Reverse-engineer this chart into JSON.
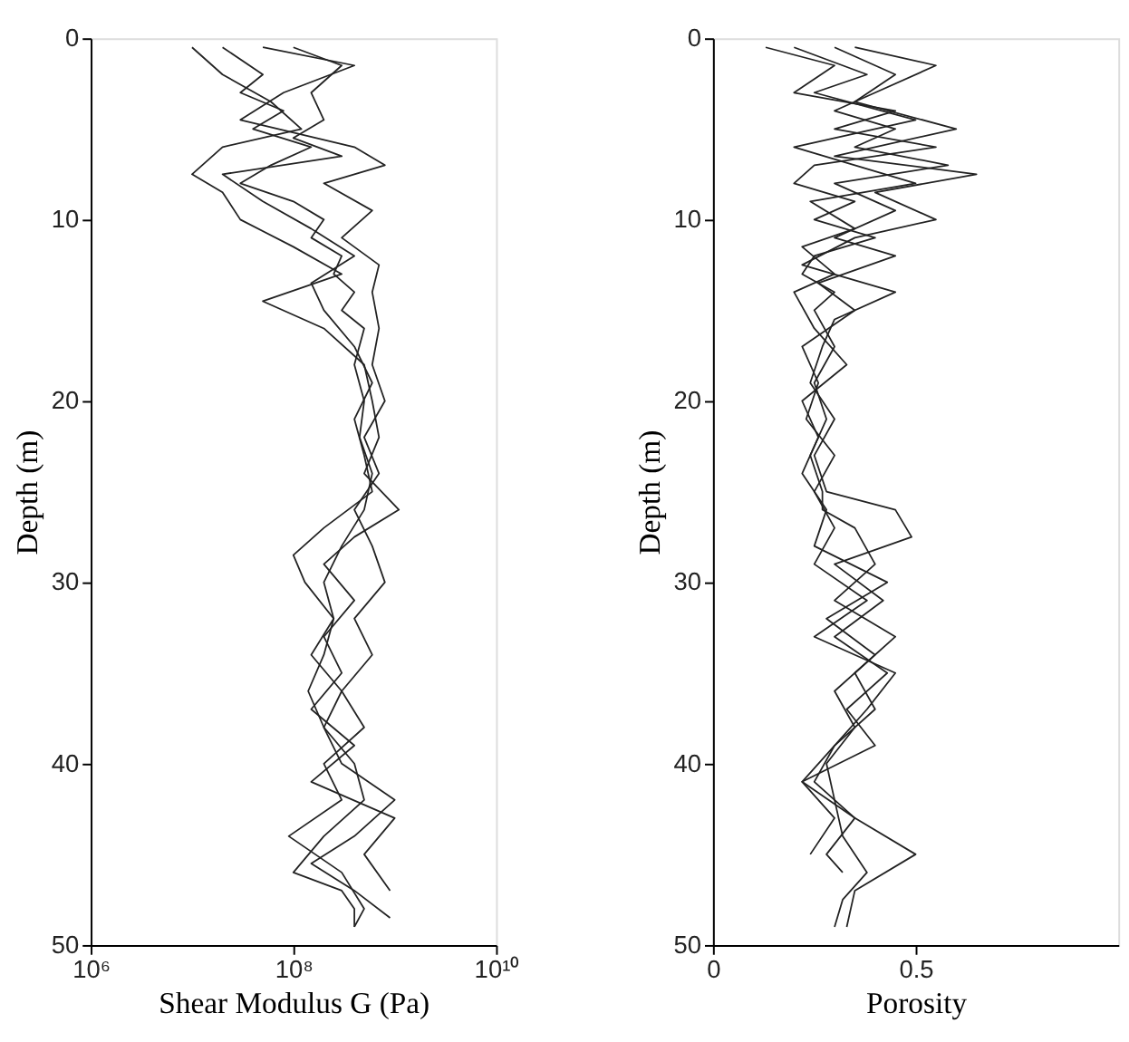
{
  "chart_data": [
    {
      "type": "line",
      "xlabel": "Shear Modulus G (Pa)",
      "ylabel": "Depth (m)",
      "log": "x",
      "grid": false,
      "legend": false,
      "xlim": [
        1000000,
        10000000000
      ],
      "xticks": [
        {
          "value": 1000000,
          "label": "10⁶"
        },
        {
          "value": 100000000,
          "label": "10⁸"
        },
        {
          "value": 10000000000,
          "label": "10¹⁰"
        }
      ],
      "ylim": [
        50,
        0
      ],
      "yticks": [
        0,
        10,
        20,
        30,
        40,
        50
      ],
      "series": [
        {
          "color": "#222222",
          "x": [
            20000000.0,
            50000000.0,
            30000000.0,
            80000000.0,
            40000000.0,
            150000000.0,
            60000000.0,
            30000000.0,
            100000000.0,
            200000000.0,
            150000000.0,
            300000000.0,
            250000000.0,
            400000000.0,
            300000000.0,
            500000000.0,
            400000000.0,
            500000000.0,
            450000000.0,
            600000000.0,
            500000000.0,
            300000000.0,
            200000000.0,
            250000000.0,
            150000000.0,
            300000000.0,
            200000000.0,
            400000000.0,
            500000000.0,
            200000000.0,
            100000000.0,
            300000000.0,
            400000000.0,
            400000000.0
          ],
          "values": [
            0.5,
            2,
            3,
            4,
            5,
            6,
            7,
            8,
            9,
            10,
            11,
            12,
            13,
            14,
            15,
            16,
            18,
            20,
            22,
            24,
            26,
            28,
            30,
            32,
            34,
            36,
            38,
            40,
            42,
            44,
            46,
            47,
            48,
            49
          ]
        },
        {
          "color": "#222222",
          "x": [
            100000000.0,
            300000000.0,
            150000000.0,
            200000000.0,
            100000000.0,
            300000000.0,
            20000000.0,
            50000000.0,
            150000000.0,
            400000000.0,
            150000000.0,
            200000000.0,
            400000000.0,
            600000000.0,
            400000000.0,
            500000000.0,
            600000000.0,
            200000000.0,
            100000000.0,
            130000000.0,
            250000000.0,
            200000000.0,
            140000000.0,
            200000000.0,
            300000000.0,
            1000000000.0,
            400000000.0,
            150000000.0,
            400000000.0,
            900000000.0
          ],
          "values": [
            0.5,
            1.5,
            3,
            4.5,
            5.5,
            6.5,
            7.5,
            9,
            10.5,
            12,
            13.5,
            15,
            17,
            19,
            21,
            23,
            25,
            27,
            28.5,
            30,
            32,
            34,
            36,
            38,
            40,
            42,
            44,
            45.5,
            47,
            48.5
          ]
        },
        {
          "color": "#222222",
          "x": [
            10000000.0,
            20000000.0,
            60000000.0,
            120000000.0,
            20000000.0,
            10000000.0,
            20000000.0,
            30000000.0,
            100000000.0,
            300000000.0,
            50000000.0,
            200000000.0,
            500000000.0,
            600000000.0,
            700000000.0,
            500000000.0,
            1100000000.0,
            400000000.0,
            200000000.0,
            400000000.0,
            200000000.0,
            300000000.0,
            150000000.0,
            400000000.0,
            150000000.0,
            1000000000.0,
            500000000.0,
            900000000.0
          ],
          "values": [
            0.5,
            2,
            3.5,
            5,
            6,
            7.5,
            8.5,
            10,
            11.5,
            13,
            14.5,
            16,
            18,
            20,
            22,
            24,
            26,
            27.5,
            29,
            31,
            33,
            35,
            37,
            39,
            41,
            43,
            45,
            47
          ]
        },
        {
          "color": "#222222",
          "x": [
            50000000.0,
            400000000.0,
            80000000.0,
            30000000.0,
            400000000.0,
            800000000.0,
            200000000.0,
            600000000.0,
            300000000.0,
            700000000.0,
            600000000.0,
            700000000.0,
            600000000.0,
            800000000.0,
            500000000.0,
            700000000.0,
            400000000.0,
            600000000.0,
            800000000.0,
            400000000.0,
            600000000.0,
            300000000.0,
            500000000.0,
            200000000.0,
            300000000.0,
            90000000.0,
            300000000.0,
            500000000.0,
            400000000.0
          ],
          "values": [
            0.5,
            1.5,
            3,
            4.5,
            6,
            7,
            8,
            9.5,
            11,
            12.5,
            14,
            16,
            18,
            20,
            22,
            24,
            26,
            28,
            30,
            32,
            34,
            36,
            38,
            40,
            42,
            44,
            46,
            48,
            49
          ]
        }
      ]
    },
    {
      "type": "line",
      "xlabel": "Porosity",
      "ylabel": "Depth (m)",
      "grid": false,
      "legend": false,
      "xlim": [
        0,
        1
      ],
      "xticks": [
        0,
        0.5
      ],
      "ylim": [
        50,
        0
      ],
      "yticks": [
        0,
        10,
        20,
        30,
        40,
        50
      ],
      "series": [
        {
          "color": "#222222",
          "x": [
            0.13,
            0.3,
            0.2,
            0.45,
            0.3,
            0.55,
            0.25,
            0.2,
            0.35,
            0.25,
            0.4,
            0.25,
            0.22,
            0.3,
            0.25,
            0.3,
            0.25,
            0.28,
            0.24,
            0.27,
            0.27,
            0.35,
            0.4,
            0.3,
            0.45,
            0.35,
            0.4,
            0.3,
            0.25,
            0.35,
            0.5,
            0.35,
            0.33
          ],
          "values": [
            0.5,
            1.5,
            3,
            4,
            5,
            6,
            7,
            8,
            9,
            10,
            11,
            12,
            13,
            14,
            15,
            17,
            19,
            21,
            23,
            25,
            26,
            27,
            29,
            31,
            33,
            35,
            37,
            39,
            41,
            43,
            45,
            47,
            49
          ]
        },
        {
          "color": "#222222",
          "x": [
            0.3,
            0.45,
            0.35,
            0.6,
            0.3,
            0.65,
            0.4,
            0.55,
            0.35,
            0.22,
            0.45,
            0.3,
            0.27,
            0.24,
            0.3,
            0.25,
            0.28,
            0.45,
            0.49,
            0.3,
            0.42,
            0.3,
            0.43,
            0.33,
            0.4,
            0.22,
            0.3,
            0.24
          ],
          "values": [
            0.5,
            2,
            3.5,
            5,
            6.5,
            7.5,
            8.5,
            10,
            11,
            12.5,
            14,
            15.5,
            17,
            19,
            21,
            23,
            25,
            26,
            27.5,
            29,
            31,
            33,
            35,
            37,
            39,
            41,
            43,
            45
          ]
        },
        {
          "color": "#222222",
          "x": [
            0.2,
            0.38,
            0.25,
            0.5,
            0.2,
            0.35,
            0.5,
            0.24,
            0.35,
            0.22,
            0.3,
            0.2,
            0.25,
            0.33,
            0.22,
            0.26,
            0.22,
            0.28,
            0.25,
            0.43,
            0.28,
            0.4,
            0.3,
            0.35,
            0.28,
            0.3,
            0.32,
            0.38,
            0.32,
            0.3
          ],
          "values": [
            0.5,
            2,
            3,
            4.5,
            6,
            7,
            8,
            9,
            10.5,
            11.5,
            13,
            14,
            16,
            18,
            20,
            22,
            24,
            26,
            28,
            30,
            32,
            34,
            36,
            38,
            40,
            42,
            44,
            46,
            47.5,
            49
          ]
        },
        {
          "color": "#222222",
          "x": [
            0.35,
            0.55,
            0.4,
            0.3,
            0.45,
            0.35,
            0.58,
            0.3,
            0.45,
            0.3,
            0.45,
            0.26,
            0.35,
            0.22,
            0.26,
            0.23,
            0.3,
            0.25,
            0.3,
            0.25,
            0.38,
            0.25,
            0.45,
            0.38,
            0.3,
            0.22,
            0.35,
            0.28,
            0.32
          ],
          "values": [
            0.5,
            1.5,
            3,
            4,
            5,
            6,
            7,
            8,
            9.5,
            11,
            12,
            13.5,
            15,
            17,
            19,
            21,
            23,
            25,
            27,
            29,
            31,
            33,
            35,
            37,
            39,
            41,
            43,
            45,
            46
          ]
        }
      ]
    }
  ]
}
